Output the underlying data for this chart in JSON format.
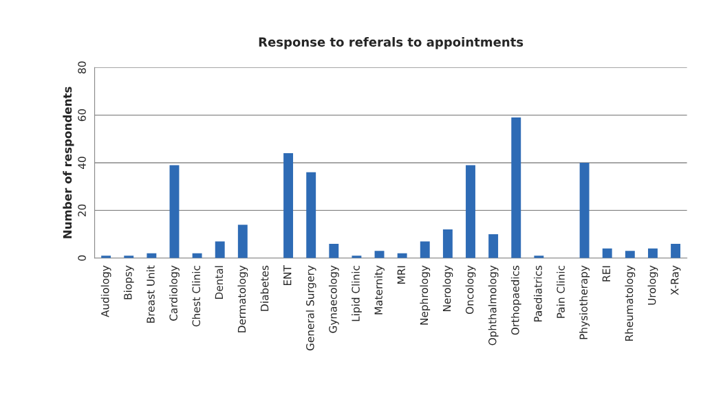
{
  "chart_data": {
    "type": "bar",
    "title": "Response to referals to appointments",
    "ylabel": "Number of respondents",
    "categories": [
      "Audiology",
      "Biopsy",
      "Breast Unit",
      "Cardiology",
      "Chest Clinic",
      "Dental",
      "Dermatology",
      "Diabetes",
      "ENT",
      "General Surgery",
      "Gynaecology",
      "Lipid Clinic",
      "Maternity",
      "MRI",
      "Nephrology",
      "Nerology",
      "Oncology",
      "Ophthalmology",
      "Orthopaedics",
      "Paediatrics",
      "Pain Clinic",
      "Physiotherapy",
      "REI",
      "Rheumatology",
      "Urology",
      "X-Ray"
    ],
    "values": [
      1,
      1,
      2,
      39,
      2,
      7,
      14,
      0,
      44,
      36,
      6,
      1,
      3,
      2,
      7,
      12,
      39,
      10,
      59,
      1,
      0,
      40,
      4,
      3,
      4,
      6
    ],
    "color": "#2e6bb5",
    "ylim": [
      0,
      80
    ],
    "yticks": [
      0,
      20,
      40,
      60,
      80
    ],
    "grid": "y",
    "legend": false
  }
}
